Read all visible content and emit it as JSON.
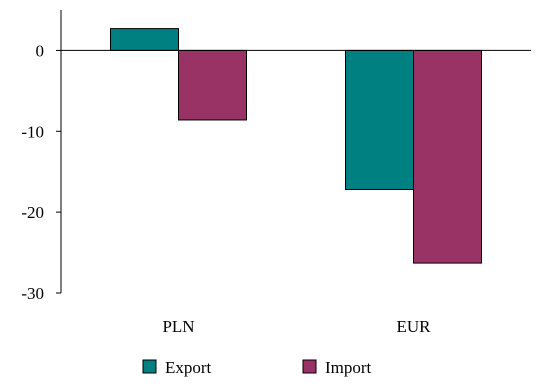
{
  "chart_data": {
    "type": "bar",
    "title": "",
    "xlabel": "",
    "ylabel": "",
    "categories": [
      "PLN",
      "EUR"
    ],
    "series": [
      {
        "name": "Export",
        "values": [
          2.7,
          -17.2
        ],
        "color": "#008080"
      },
      {
        "name": "Import",
        "values": [
          -8.6,
          -26.3
        ],
        "color": "#993366"
      }
    ],
    "ylim": [
      -30,
      5
    ],
    "yticks": [
      0,
      -10,
      -20,
      -30
    ],
    "ytick_labels": [
      "0",
      "-10",
      "-20",
      "-30"
    ],
    "grid": false,
    "legend": "bottom-center"
  }
}
